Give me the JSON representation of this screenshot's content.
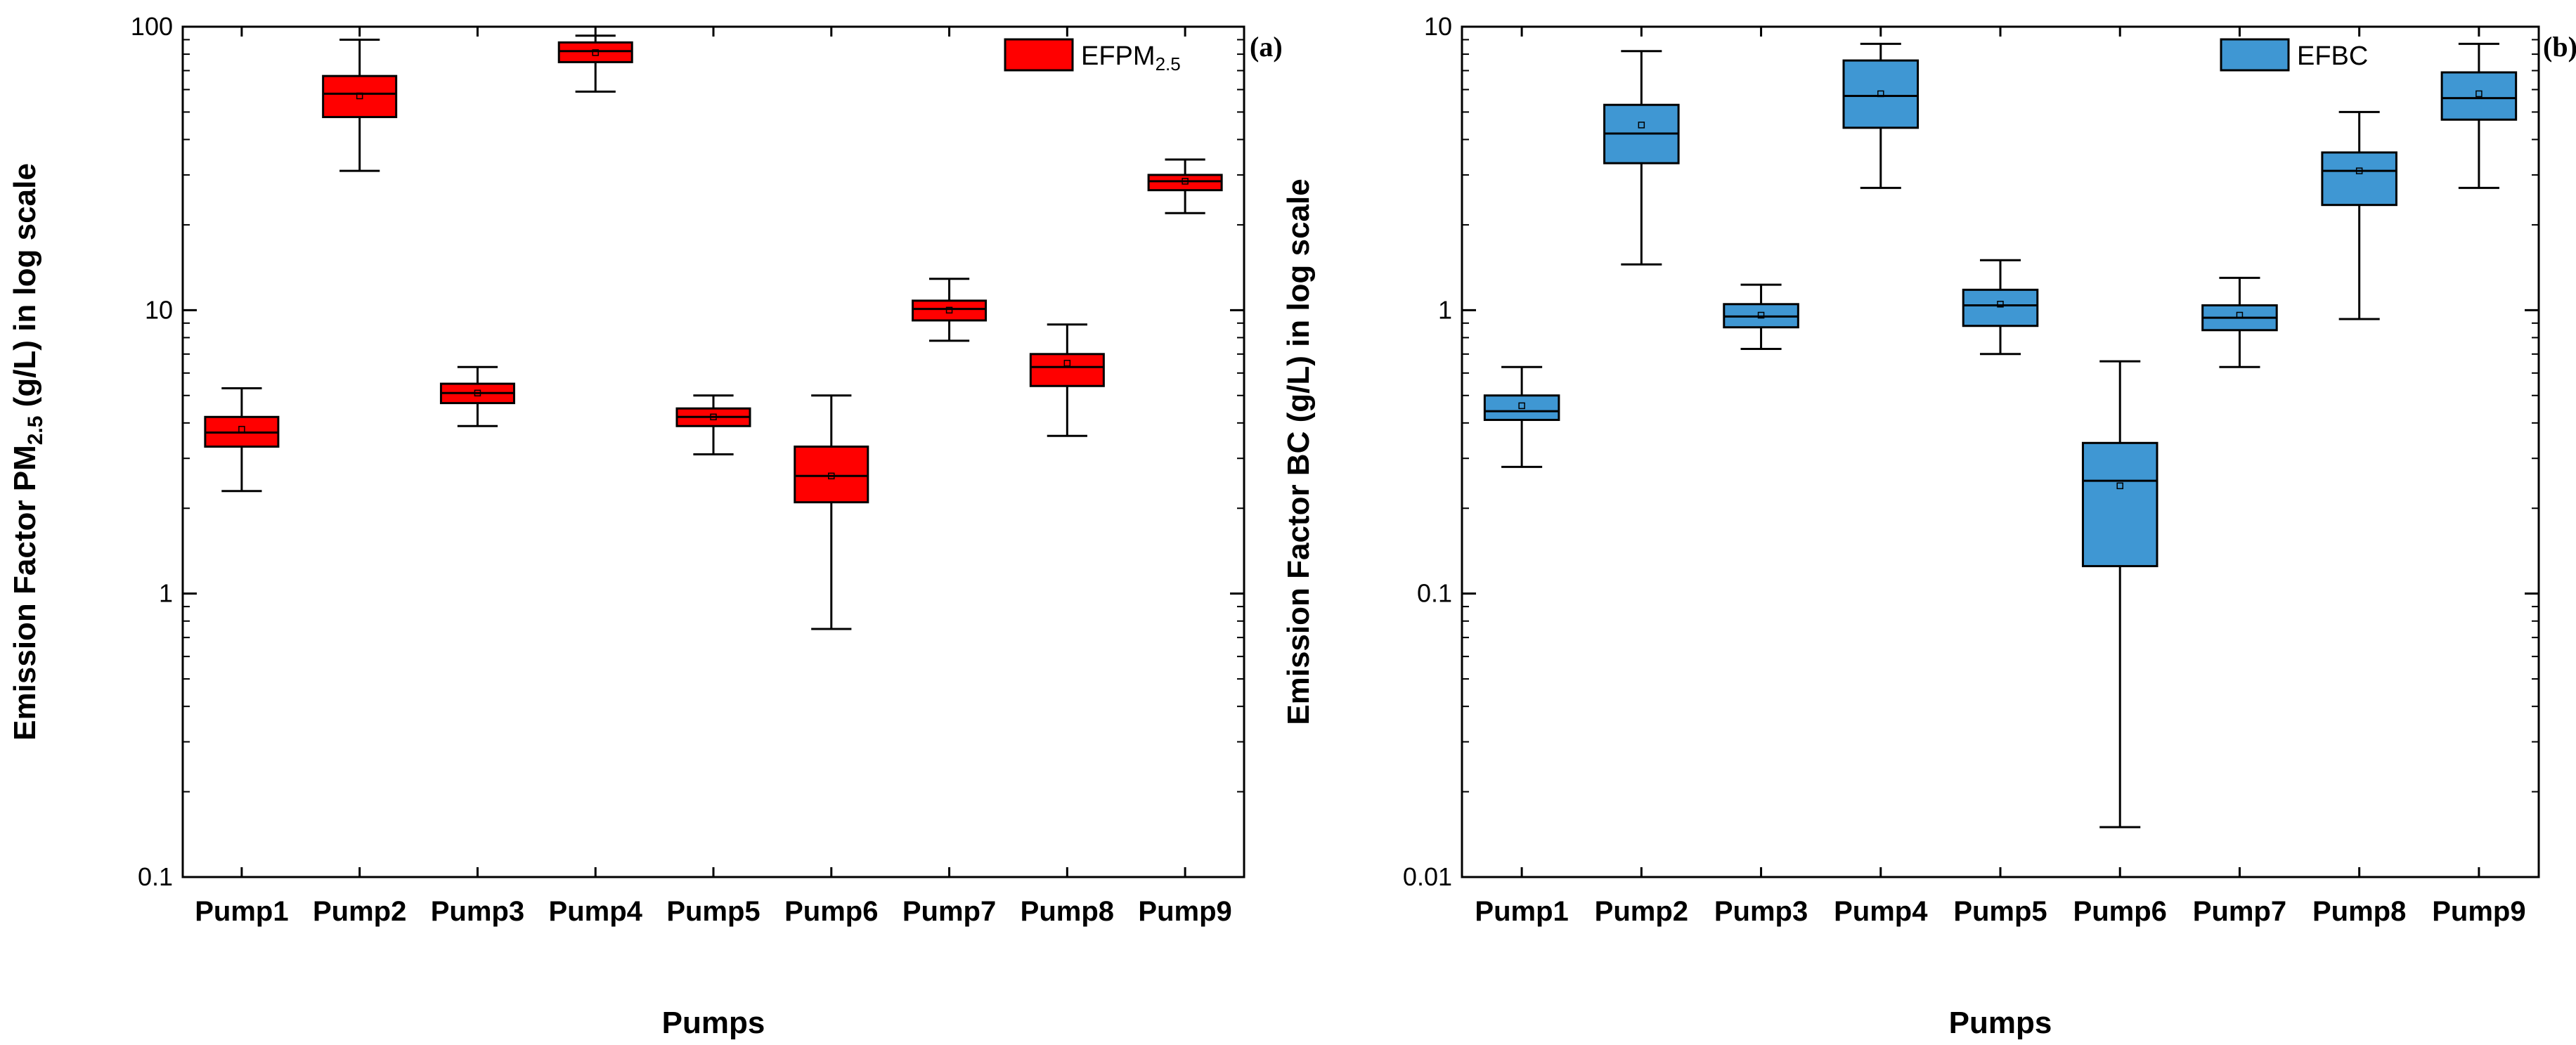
{
  "chart_data": [
    {
      "type": "box",
      "panel_label": "(a)",
      "xlabel": "Pumps",
      "ylabel_prefix": "Emission Factor PM",
      "ylabel_sub": "2.5",
      "ylabel_suffix": " (g/L) in log scale",
      "yscale": "log",
      "ylim": [
        0.1,
        100
      ],
      "yticks": [
        0.1,
        1,
        10,
        100
      ],
      "ytick_labels": [
        "0.1",
        "1",
        "10",
        "100"
      ],
      "legend": {
        "text": "EFPM",
        "sub": "2.5",
        "position": "top-right"
      },
      "color": "#ff0000",
      "categories": [
        "Pump1",
        "Pump2",
        "Pump3",
        "Pump4",
        "Pump5",
        "Pump6",
        "Pump7",
        "Pump8",
        "Pump9"
      ],
      "boxes": [
        {
          "min": 2.3,
          "q1": 3.3,
          "median": 3.7,
          "q3": 4.2,
          "max": 5.3,
          "mean": 3.8
        },
        {
          "min": 31,
          "q1": 48,
          "median": 58,
          "q3": 67,
          "max": 90,
          "mean": 57
        },
        {
          "min": 3.9,
          "q1": 4.7,
          "median": 5.1,
          "q3": 5.5,
          "max": 6.3,
          "mean": 5.1
        },
        {
          "min": 59,
          "q1": 75,
          "median": 82,
          "q3": 88,
          "max": 93,
          "mean": 81
        },
        {
          "min": 3.1,
          "q1": 3.9,
          "median": 4.2,
          "q3": 4.5,
          "max": 5.0,
          "mean": 4.2
        },
        {
          "min": 0.75,
          "q1": 2.1,
          "median": 2.6,
          "q3": 3.3,
          "max": 5.0,
          "mean": 2.6
        },
        {
          "min": 7.8,
          "q1": 9.2,
          "median": 10.1,
          "q3": 10.8,
          "max": 12.9,
          "mean": 10.0
        },
        {
          "min": 3.6,
          "q1": 5.4,
          "median": 6.3,
          "q3": 7.0,
          "max": 8.9,
          "mean": 6.5
        },
        {
          "min": 22,
          "q1": 26.5,
          "median": 28.5,
          "q3": 30,
          "max": 34,
          "mean": 28.5
        }
      ]
    },
    {
      "type": "box",
      "panel_label": "(b)",
      "xlabel": "Pumps",
      "ylabel_prefix": "Emission Factor BC (g/L) in log scale",
      "ylabel_sub": "",
      "ylabel_suffix": "",
      "yscale": "log",
      "ylim": [
        0.01,
        10
      ],
      "yticks": [
        0.01,
        0.1,
        1,
        10
      ],
      "ytick_labels": [
        "0.01",
        "0.1",
        "1",
        "10"
      ],
      "legend": {
        "text": "EFBC",
        "sub": "",
        "position": "top-right"
      },
      "color": "#3f97d3",
      "categories": [
        "Pump1",
        "Pump2",
        "Pump3",
        "Pump4",
        "Pump5",
        "Pump6",
        "Pump7",
        "Pump8",
        "Pump9"
      ],
      "boxes": [
        {
          "min": 0.28,
          "q1": 0.41,
          "median": 0.44,
          "q3": 0.5,
          "max": 0.63,
          "mean": 0.46
        },
        {
          "min": 1.45,
          "q1": 3.3,
          "median": 4.2,
          "q3": 5.3,
          "max": 8.2,
          "mean": 4.5
        },
        {
          "min": 0.73,
          "q1": 0.87,
          "median": 0.95,
          "q3": 1.05,
          "max": 1.23,
          "mean": 0.96
        },
        {
          "min": 2.7,
          "q1": 4.4,
          "median": 5.7,
          "q3": 7.6,
          "max": 8.7,
          "mean": 5.8
        },
        {
          "min": 0.7,
          "q1": 0.88,
          "median": 1.04,
          "q3": 1.18,
          "max": 1.5,
          "mean": 1.05
        },
        {
          "min": 0.015,
          "q1": 0.125,
          "median": 0.25,
          "q3": 0.34,
          "max": 0.66,
          "mean": 0.24
        },
        {
          "min": 0.63,
          "q1": 0.85,
          "median": 0.94,
          "q3": 1.04,
          "max": 1.3,
          "mean": 0.96
        },
        {
          "min": 0.93,
          "q1": 2.35,
          "median": 3.1,
          "q3": 3.6,
          "max": 5.0,
          "mean": 3.1
        },
        {
          "min": 2.7,
          "q1": 4.7,
          "median": 5.6,
          "q3": 6.9,
          "max": 8.7,
          "mean": 5.8
        }
      ]
    }
  ]
}
